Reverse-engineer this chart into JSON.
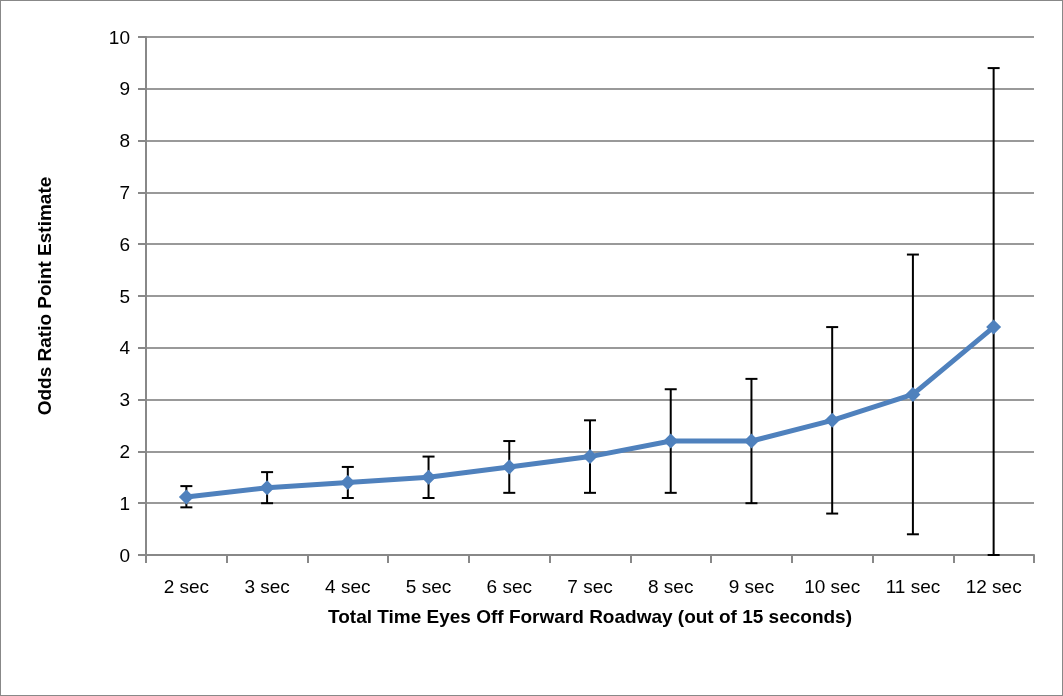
{
  "chart_data": {
    "type": "line",
    "xlabel": "Total Time Eyes Off Forward Roadway (out of 15 seconds)",
    "ylabel": "Odds Ratio Point Estimate",
    "categories": [
      "2 sec",
      "3 sec",
      "4 sec",
      "5 sec",
      "6 sec",
      "7 sec",
      "8 sec",
      "9 sec",
      "10 sec",
      "11 sec",
      "12 sec"
    ],
    "series": [
      {
        "color": "#4f81bd",
        "values": [
          1.12,
          1.3,
          1.4,
          1.5,
          1.7,
          1.9,
          2.2,
          2.2,
          2.6,
          3.1,
          4.4
        ],
        "errors": [
          [
            0.92,
            1.33
          ],
          [
            1.0,
            1.6
          ],
          [
            1.1,
            1.7
          ],
          [
            1.1,
            1.9
          ],
          [
            1.2,
            2.2
          ],
          [
            1.2,
            2.6
          ],
          [
            1.2,
            3.2
          ],
          [
            1.0,
            3.4
          ],
          [
            0.8,
            4.4
          ],
          [
            0.4,
            5.8
          ],
          [
            0,
            9.4
          ]
        ]
      }
    ],
    "ylim": [
      0,
      10
    ],
    "yticks": [
      0,
      1,
      2,
      3,
      4,
      5,
      6,
      7,
      8,
      9,
      10
    ],
    "grid": "y",
    "marker": "diamond",
    "line_style": "solid"
  }
}
